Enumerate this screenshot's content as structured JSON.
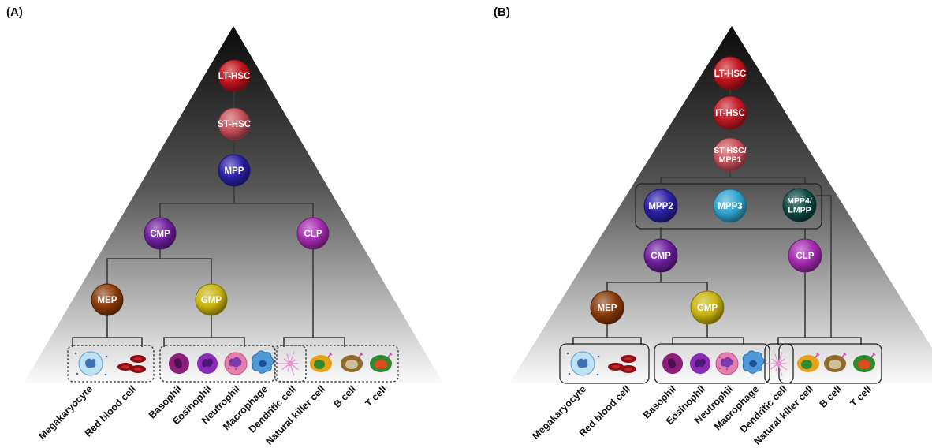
{
  "panels": [
    {
      "id": "A",
      "label": "(A)",
      "nodes": [
        "LT-HSC",
        "ST-HSC",
        "MPP",
        "CMP",
        "CLP",
        "MEP",
        "GMP"
      ],
      "cells": [
        "Megakaryocyte",
        "Red blood cell",
        "Basophil",
        "Eosinophil",
        "Neutrophil",
        "Macrophage",
        "Dendritic cell",
        "Natural killer cell",
        "B cell",
        "T cell"
      ]
    },
    {
      "id": "B",
      "label": "(B)",
      "nodes": [
        "LT-HSC",
        "IT-HSC",
        "ST-HSC/\nMPP1",
        "MPP2",
        "MPP3",
        "MPP4/\nLMPP",
        "CMP",
        "CLP",
        "MEP",
        "GMP"
      ],
      "cells": [
        "Megakaryocyte",
        "Red blood cell",
        "Basophil",
        "Eosinophil",
        "Neutrophil",
        "Macrophage",
        "Dendritic cell",
        "Natural killer cell",
        "B cell",
        "T cell"
      ]
    }
  ],
  "node_colors": {
    "LT-HSC": "#c2141c",
    "ST-HSC": "#c8505a",
    "IT-HSC": "#c21a24",
    "ST-HSC/\nMPP1": "#c8505a",
    "MPP": "#2a1fa6",
    "MPP2": "#2a1fa6",
    "MPP3": "#2fa3d0",
    "MPP4/\nLMPP": "#0d4a44",
    "CMP": "#6d1e9c",
    "CLP": "#a52ab0",
    "MEP": "#8a3a08",
    "GMP": "#c9b40e"
  },
  "cell_icons": [
    "megakaryocyte-icon",
    "red-blood-cell-icon",
    "basophil-icon",
    "eosinophil-icon",
    "neutrophil-icon",
    "macrophage-icon",
    "dendritic-cell-icon",
    "natural-killer-cell-icon",
    "b-cell-icon",
    "t-cell-icon"
  ]
}
